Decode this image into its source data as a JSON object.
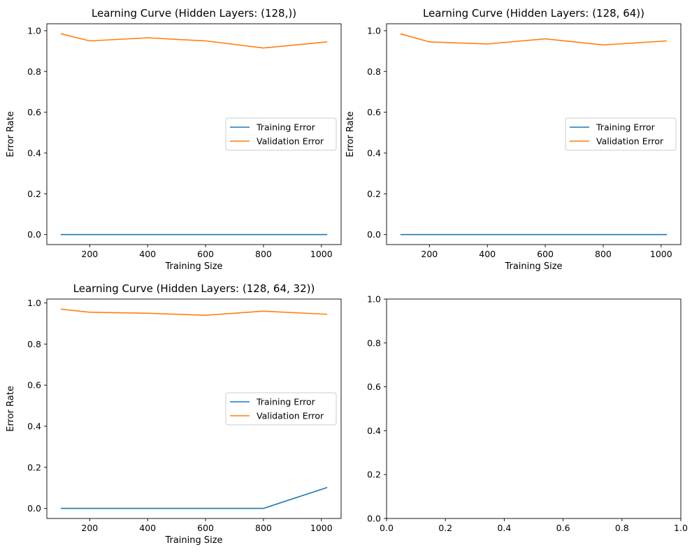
{
  "colors": {
    "training": "#1f77b4",
    "validation": "#ff7f0e",
    "axes": "#000000",
    "legend_border": "#cccccc"
  },
  "chart_data": [
    {
      "type": "line",
      "title": "Learning Curve (Hidden Layers: (128,))",
      "xlabel": "Training Size",
      "ylabel": "Error Rate",
      "xlim": [
        52,
        1068
      ],
      "ylim": [
        -0.049,
        1.034
      ],
      "xticks": [
        200,
        400,
        600,
        800,
        1000
      ],
      "yticks": [
        0.0,
        0.2,
        0.4,
        0.6,
        0.8,
        1.0
      ],
      "xtick_labels": [
        "200",
        "400",
        "600",
        "800",
        "1000"
      ],
      "ytick_labels": [
        "0.0",
        "0.2",
        "0.4",
        "0.6",
        "0.8",
        "1.0"
      ],
      "legend": "center-right",
      "grid": false,
      "x": [
        100,
        200,
        400,
        600,
        800,
        1020
      ],
      "series": [
        {
          "name": "Training Error",
          "values": [
            0.0,
            0.0,
            0.0,
            0.0,
            0.0,
            0.0
          ]
        },
        {
          "name": "Validation Error",
          "values": [
            0.985,
            0.95,
            0.965,
            0.95,
            0.915,
            0.945
          ]
        }
      ]
    },
    {
      "type": "line",
      "title": "Learning Curve (Hidden Layers: (128, 64))",
      "xlabel": "Training Size",
      "ylabel": "Error Rate",
      "xlim": [
        52,
        1068
      ],
      "ylim": [
        -0.049,
        1.034
      ],
      "xticks": [
        200,
        400,
        600,
        800,
        1000
      ],
      "yticks": [
        0.0,
        0.2,
        0.4,
        0.6,
        0.8,
        1.0
      ],
      "xtick_labels": [
        "200",
        "400",
        "600",
        "800",
        "1000"
      ],
      "ytick_labels": [
        "0.0",
        "0.2",
        "0.4",
        "0.6",
        "0.8",
        "1.0"
      ],
      "legend": "center-right",
      "grid": false,
      "x": [
        100,
        200,
        400,
        600,
        800,
        1020
      ],
      "series": [
        {
          "name": "Training Error",
          "values": [
            0.0,
            0.0,
            0.0,
            0.0,
            0.0,
            0.0
          ]
        },
        {
          "name": "Validation Error",
          "values": [
            0.985,
            0.945,
            0.935,
            0.96,
            0.93,
            0.95
          ]
        }
      ]
    },
    {
      "type": "line",
      "title": "Learning Curve (Hidden Layers: (128, 64, 32))",
      "xlabel": "Training Size",
      "ylabel": "Error Rate",
      "xlim": [
        52,
        1068
      ],
      "ylim": [
        -0.049,
        1.019
      ],
      "xticks": [
        200,
        400,
        600,
        800,
        1000
      ],
      "yticks": [
        0.0,
        0.2,
        0.4,
        0.6,
        0.8,
        1.0
      ],
      "xtick_labels": [
        "200",
        "400",
        "600",
        "800",
        "1000"
      ],
      "ytick_labels": [
        "0.0",
        "0.2",
        "0.4",
        "0.6",
        "0.8",
        "1.0"
      ],
      "legend": "center-right",
      "grid": false,
      "x": [
        100,
        200,
        400,
        600,
        800,
        1020
      ],
      "series": [
        {
          "name": "Training Error",
          "values": [
            0.0,
            0.0,
            0.0,
            0.0,
            0.0,
            0.102
          ]
        },
        {
          "name": "Validation Error",
          "values": [
            0.97,
            0.955,
            0.95,
            0.94,
            0.96,
            0.945
          ]
        }
      ]
    },
    {
      "type": "line",
      "title": "",
      "xlabel": "",
      "ylabel": "",
      "xlim": [
        0,
        1
      ],
      "ylim": [
        0,
        1
      ],
      "xticks": [
        0.0,
        0.2,
        0.4,
        0.6,
        0.8,
        1.0
      ],
      "yticks": [
        0.0,
        0.2,
        0.4,
        0.6,
        0.8,
        1.0
      ],
      "xtick_labels": [
        "0.0",
        "0.2",
        "0.4",
        "0.6",
        "0.8",
        "1.0"
      ],
      "ytick_labels": [
        "0.0",
        "0.2",
        "0.4",
        "0.6",
        "0.8",
        "1.0"
      ],
      "legend": "none",
      "grid": false,
      "x": [],
      "series": []
    }
  ]
}
